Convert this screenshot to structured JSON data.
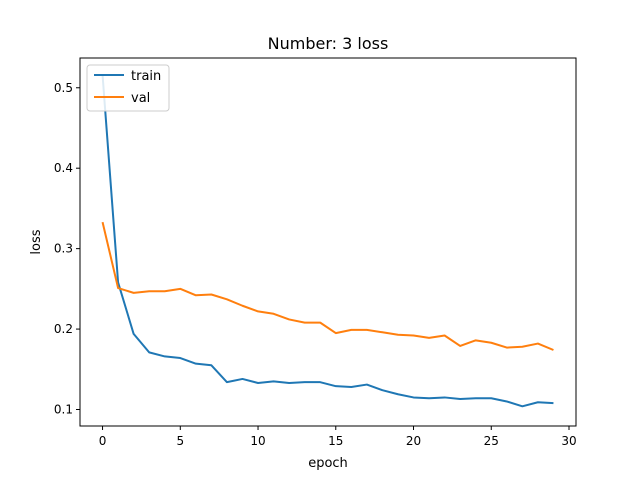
{
  "chart_data": {
    "type": "line",
    "title": "Number: 3 loss",
    "xlabel": "epoch",
    "ylabel": "loss",
    "xlim": [
      -1.45,
      30.45
    ],
    "ylim": [
      0.0795,
      0.537
    ],
    "xticks": [
      0,
      5,
      10,
      15,
      20,
      25,
      30
    ],
    "yticks": [
      0.1,
      0.2,
      0.3,
      0.4,
      0.5
    ],
    "xtick_labels": [
      "0",
      "5",
      "10",
      "15",
      "20",
      "25",
      "30"
    ],
    "ytick_labels": [
      "0.1",
      "0.2",
      "0.3",
      "0.4",
      "0.5"
    ],
    "grid": false,
    "legend_position": "top-left",
    "x": [
      0,
      1,
      2,
      3,
      4,
      5,
      6,
      7,
      8,
      9,
      10,
      11,
      12,
      13,
      14,
      15,
      16,
      17,
      18,
      19,
      20,
      21,
      22,
      23,
      24,
      25,
      26,
      27,
      28,
      29
    ],
    "series": [
      {
        "name": "train",
        "color": "#1f77b4",
        "values": [
          0.516,
          0.258,
          0.194,
          0.171,
          0.166,
          0.164,
          0.157,
          0.155,
          0.134,
          0.138,
          0.133,
          0.135,
          0.133,
          0.134,
          0.134,
          0.129,
          0.128,
          0.131,
          0.124,
          0.119,
          0.115,
          0.114,
          0.115,
          0.113,
          0.114,
          0.114,
          0.11,
          0.104,
          0.109,
          0.108
        ]
      },
      {
        "name": "val",
        "color": "#ff7f0e",
        "values": [
          0.333,
          0.251,
          0.245,
          0.247,
          0.247,
          0.25,
          0.242,
          0.243,
          0.237,
          0.229,
          0.222,
          0.219,
          0.212,
          0.208,
          0.208,
          0.195,
          0.199,
          0.199,
          0.196,
          0.193,
          0.192,
          0.189,
          0.192,
          0.179,
          0.186,
          0.183,
          0.177,
          0.178,
          0.182,
          0.174
        ]
      }
    ]
  }
}
